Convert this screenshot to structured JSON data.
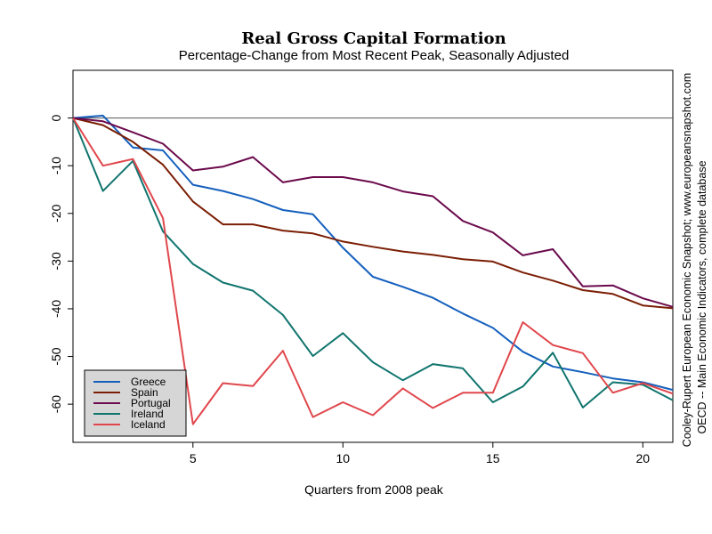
{
  "chart_data": {
    "type": "line",
    "title": "Real Gross Capital Formation",
    "subtitle": "Percentage-Change from Most Recent Peak, Seasonally Adjusted",
    "xlabel": "Quarters from 2008 peak",
    "ylabel": "",
    "xlim": [
      1,
      21
    ],
    "ylim": [
      -68,
      10
    ],
    "x_ticks": [
      5,
      10,
      15,
      20
    ],
    "y_ticks": [
      0,
      -10,
      -20,
      -30,
      -40,
      -50,
      -60
    ],
    "x": [
      1,
      2,
      3,
      4,
      5,
      6,
      7,
      8,
      9,
      10,
      11,
      12,
      13,
      14,
      15,
      16,
      17,
      18,
      19,
      20,
      21
    ],
    "reference_line": 0,
    "grid": false,
    "legend_position": "bottom-left",
    "series": [
      {
        "name": "Greece",
        "color": "#1560BD",
        "values": [
          0,
          0.5,
          -6.2,
          -6.8,
          -14,
          -15.3,
          -17,
          -19.3,
          -20.2,
          -27.2,
          -33.3,
          -35.4,
          -37.7,
          -41,
          -44,
          -49,
          -52.1,
          -53.3,
          -54.6,
          -55.4,
          -57
        ]
      },
      {
        "name": "Spain",
        "color": "#7B1E05",
        "values": [
          0,
          -1.5,
          -5,
          -9.8,
          -17.5,
          -22.3,
          -22.3,
          -23.6,
          -24.2,
          -25.9,
          -27,
          -28,
          -28.7,
          -29.6,
          -30.1,
          -32.4,
          -34.1,
          -36.1,
          -36.9,
          -39.3,
          -39.9
        ]
      },
      {
        "name": "Portugal",
        "color": "#6B0A4C",
        "values": [
          0,
          -0.7,
          -3,
          -5.4,
          -11,
          -10.2,
          -8.2,
          -13.5,
          -12.4,
          -12.4,
          -13.5,
          -15.4,
          -16.4,
          -21.6,
          -24,
          -28.8,
          -27.5,
          -35.3,
          -35.1,
          -37.8,
          -39.6
        ]
      },
      {
        "name": "Ireland",
        "color": "#10756E",
        "values": [
          0,
          -15.3,
          -9,
          -23.8,
          -30.6,
          -34.5,
          -36.2,
          -41.3,
          -49.9,
          -45.1,
          -51.2,
          -55,
          -51.6,
          -52.5,
          -59.6,
          -56.3,
          -49.2,
          -60.7,
          -55.4,
          -55.9,
          -59.2
        ]
      },
      {
        "name": "Iceland",
        "color": "#E0474C",
        "values": [
          0,
          -10,
          -8.6,
          -21,
          -64.2,
          -55.6,
          -56.2,
          -48.8,
          -62.7,
          -59.6,
          -62.3,
          -56.7,
          -60.8,
          -57.6,
          -57.6,
          -42.8,
          -47.6,
          -49.3,
          -57.6,
          -55.6,
          -57.8
        ]
      }
    ],
    "source_notes": [
      "Cooley-Rupert European Economic Snapshot; www.europeansnapshot.com",
      "OECD -- Main Economic Indicators, complete database"
    ]
  }
}
